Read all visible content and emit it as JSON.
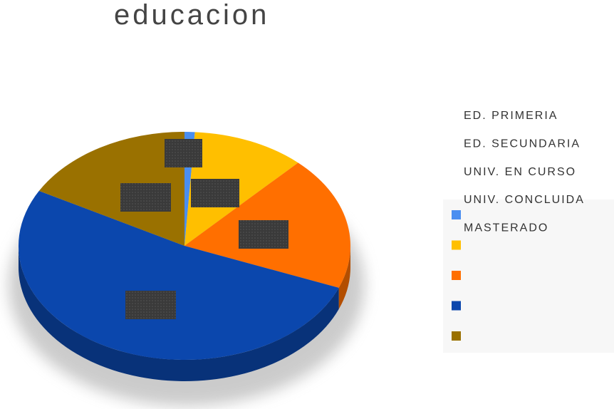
{
  "chart_data": {
    "type": "pie",
    "title": "educacion",
    "categories": [
      "ED. PRIMERIA",
      "ED. SECUNDARIA",
      "UNIV. EN CURSO",
      "UNIV. CONCLUIDA",
      "MASTERADO"
    ],
    "values": [
      1,
      11,
      19,
      52,
      17
    ],
    "colors": [
      "#4a8ef0",
      "#ffbf00",
      "#ff6f00",
      "#0b47ad",
      "#9a7100"
    ],
    "legend": "right"
  }
}
